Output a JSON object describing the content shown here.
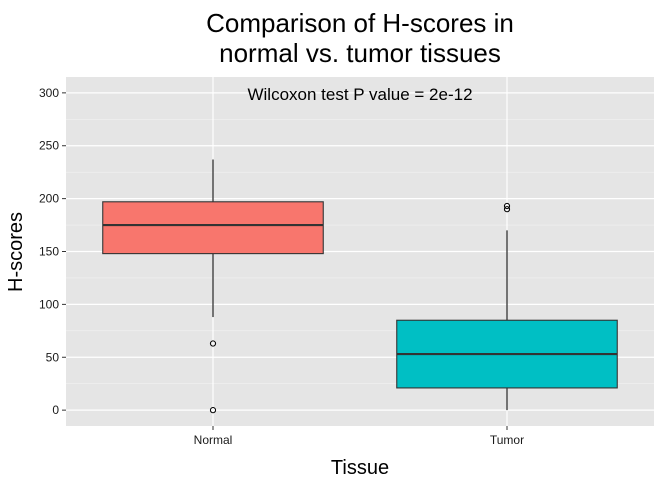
{
  "chart_data": {
    "type": "box",
    "title_lines": [
      "Comparison of H-scores in",
      "normal vs. tumor tissues"
    ],
    "xlabel": "Tissue",
    "ylabel": "H-scores",
    "annotation": "Wilcoxon test P value = 2e-12",
    "ylim": [
      -15,
      315
    ],
    "yticks": [
      0,
      50,
      100,
      150,
      200,
      250,
      300
    ],
    "categories": [
      "Normal",
      "Tumor"
    ],
    "boxes": [
      {
        "category": "Normal",
        "min": 88,
        "q1": 148,
        "median": 175,
        "q3": 197,
        "max": 237,
        "outliers": [
          63,
          0
        ],
        "fill": "#F8766D"
      },
      {
        "category": "Tumor",
        "min": 0,
        "q1": 21,
        "median": 53,
        "q3": 85,
        "max": 170,
        "outliers": [
          190,
          193
        ],
        "fill": "#00BFC4"
      }
    ],
    "grid": true,
    "panel_background": "#E5E5E5",
    "gridline_color": "#FFFFFF"
  }
}
